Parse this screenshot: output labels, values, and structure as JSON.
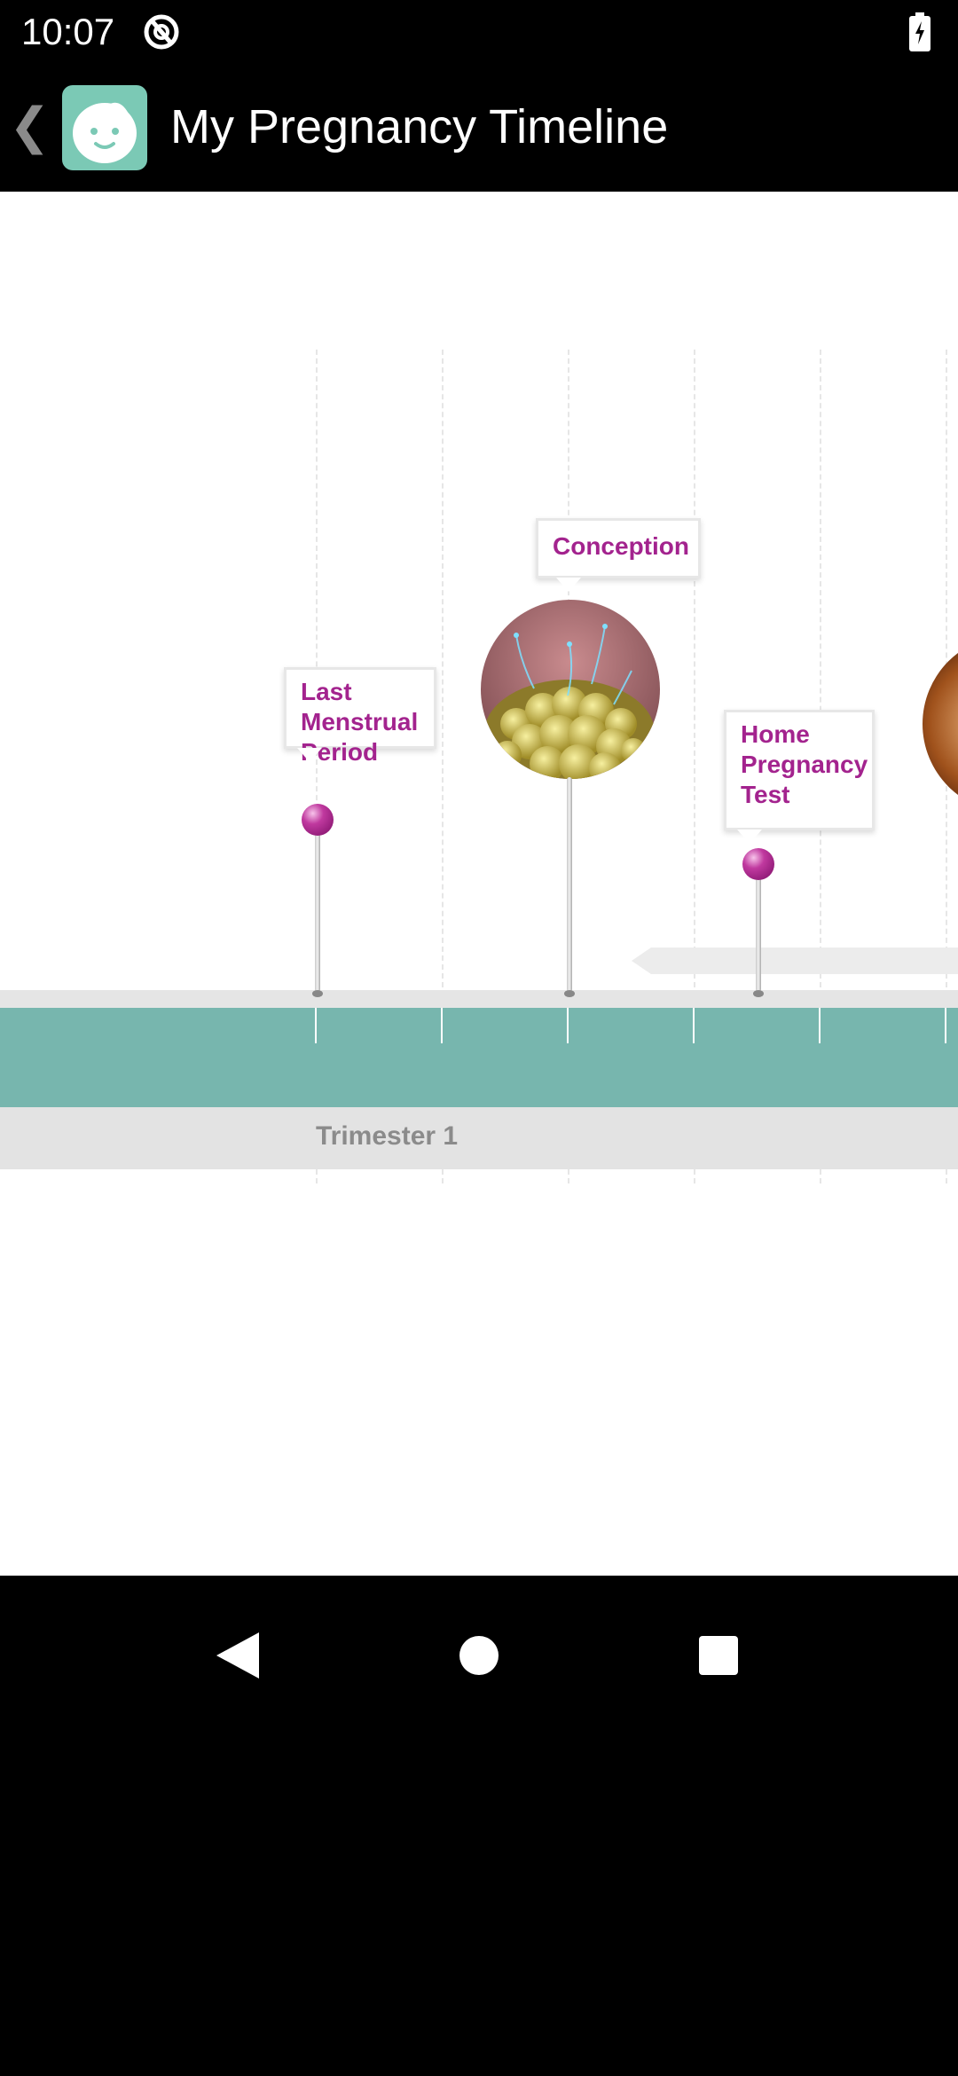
{
  "status_bar": {
    "time": "10:07"
  },
  "app_bar": {
    "back_label": "❮",
    "title": "My Pregnancy Timeline"
  },
  "timeline": {
    "trimester_label": "Trimester 1",
    "events": {
      "lmp": "Last\nMenstrual\nPeriod",
      "conception": "Conception",
      "home_test": "Home\nPregnancy\nTest"
    }
  },
  "colors": {
    "accent": "#a3238e",
    "teal": "#77b6ae",
    "logo": "#7bc9b5"
  },
  "icons": [
    "sync-icon",
    "battery-icon",
    "back-chevron-icon",
    "baby-face-icon",
    "nav-back-icon",
    "nav-home-icon",
    "nav-recents-icon"
  ]
}
